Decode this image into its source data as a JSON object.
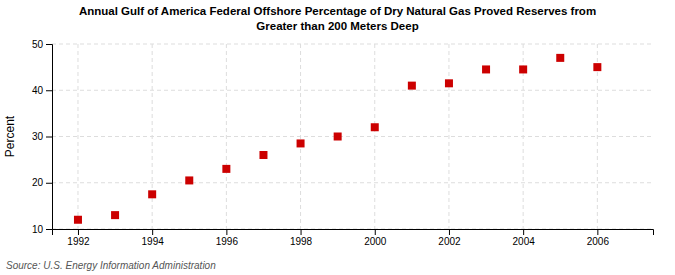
{
  "chart_data": {
    "type": "scatter",
    "title": "Annual Gulf of America Federal Offshore Percentage of Dry Natural Gas Proved Reserves from\nGreater than 200 Meters Deep",
    "y_label": "Percent",
    "annotations": [
      "Source: U.S. Energy Information Administration"
    ],
    "x": [
      1992,
      1993,
      1994,
      1995,
      1996,
      1997,
      1998,
      1999,
      2000,
      2001,
      2002,
      2003,
      2004,
      2005,
      2006
    ],
    "values": [
      12,
      13,
      17.5,
      20.5,
      23,
      26,
      28.5,
      30,
      32,
      41,
      41.5,
      44.5,
      44.5,
      47,
      45
    ],
    "color": "#cc0000",
    "marker": "square",
    "xlim": [
      1991.3,
      2007.5
    ],
    "ylim": [
      10,
      50
    ],
    "xticks": [
      1992,
      1994,
      1996,
      1998,
      2000,
      2002,
      2004,
      2006
    ],
    "yticks": [
      10,
      20,
      30,
      40,
      50
    ],
    "grid": true
  }
}
